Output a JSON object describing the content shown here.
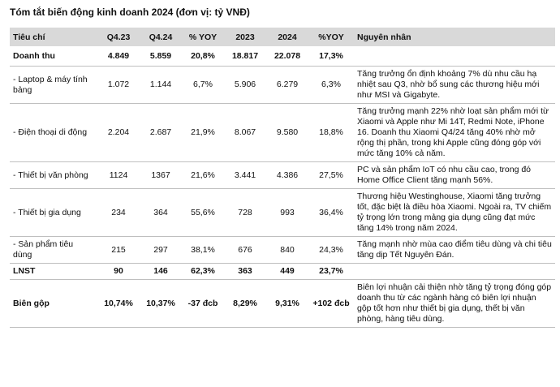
{
  "title": "Tóm tắt biến động kinh doanh 2024 (đơn vị: tỷ VNĐ)",
  "table": {
    "header": [
      "Tiêu chí",
      "Q4.23",
      "Q4.24",
      "% YOY",
      "2023",
      "2024",
      "%YOY",
      "Nguyên nhân"
    ],
    "rows": [
      [
        "Doanh thu",
        "4.849",
        "5.859",
        "20,8%",
        "18.817",
        "22.078",
        "17,3%",
        ""
      ],
      [
        " - Laptop & máy tính bảng",
        "1.072",
        "1.144",
        "6,7%",
        "5.906",
        "6.279",
        "6,3%",
        "Tăng trưởng ổn định khoảng 7% dù nhu cầu hạ nhiệt sau Q3, nhờ bổ sung các thương hiệu mới như MSI và Gigabyte."
      ],
      [
        " - Điện thoại di động",
        "2.204",
        "2.687",
        "21,9%",
        "8.067",
        "9.580",
        "18,8%",
        "Tăng trưởng mạnh 22% nhờ loạt sản phẩm mới từ Xiaomi và Apple như Mi 14T, Redmi Note, iPhone 16. Doanh thu Xiaomi Q4/24 tăng 40% nhờ mở rộng thị phần, trong khi Apple cũng đóng góp với mức tăng 10% cả năm."
      ],
      [
        " - Thiết bị văn phòng",
        "1124",
        "1367",
        "21,6%",
        "3.441",
        "4.386",
        "27,5%",
        "PC và sản phẩm IoT có nhu cầu cao, trong đó Home Office Client tăng mạnh 56%."
      ],
      [
        " - Thiết bị gia dụng",
        "234",
        "364",
        "55,6%",
        "728",
        "993",
        "36,4%",
        "Thương hiệu Westinghouse, Xiaomi tăng trưởng tốt, đặc biệt là điều hòa Xiaomi. Ngoài ra, TV chiếm tỷ trọng lớn trong mảng gia dụng cũng đạt mức tăng 14% trong năm 2024."
      ],
      [
        " - Sản phẩm tiêu dùng",
        "215",
        "297",
        "38,1%",
        "676",
        "840",
        "24,3%",
        "Tăng mạnh nhờ mùa cao điểm tiêu dùng và chi tiêu tăng dịp Tết Nguyên Đán."
      ],
      [
        "LNST",
        "90",
        "146",
        "62,3%",
        "363",
        "449",
        "23,7%",
        ""
      ],
      [
        "Biên gộp",
        "10,74%",
        "10,37%",
        "-37 đcb",
        "8,29%",
        "9,31%",
        "+102 đcb",
        "Biên lợi nhuận cải thiện nhờ tăng tỷ trọng đóng góp doanh thu từ các ngành hàng có biên lợi nhuận gộp tốt hơn như thiết bị gia dụng, thết bị văn phòng, hàng tiêu dùng."
      ]
    ]
  }
}
